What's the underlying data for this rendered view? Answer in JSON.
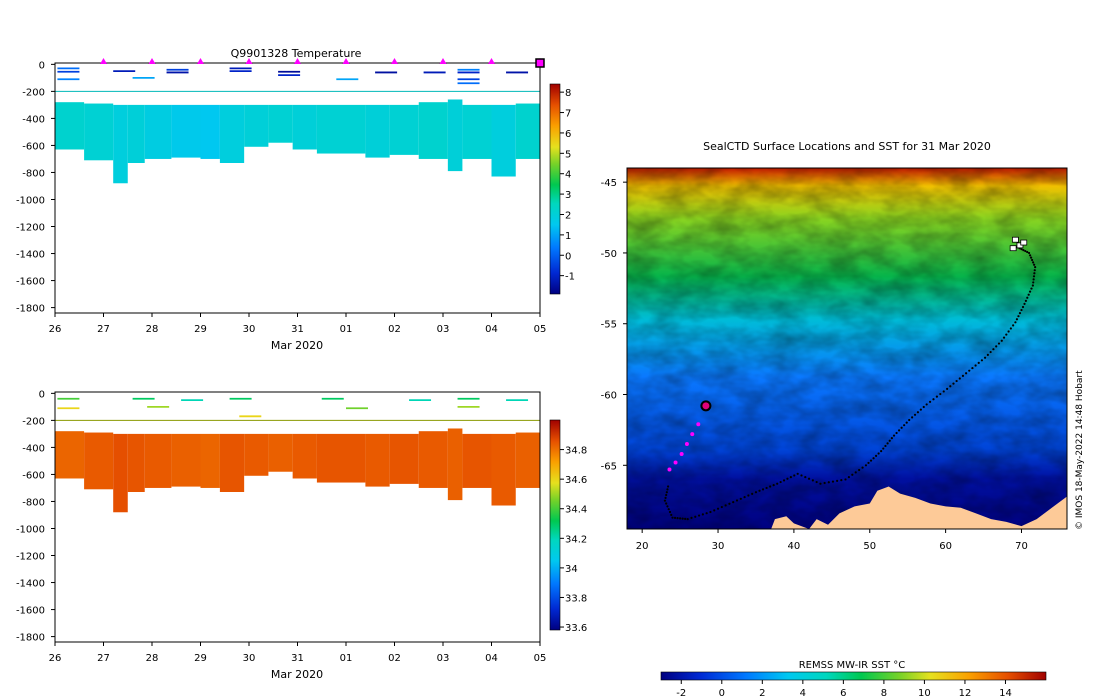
{
  "chart_data": [
    {
      "type": "heatmap",
      "title": "Q9901328  Temperature",
      "xlabel": "Mar 2020",
      "ylabel": "",
      "x_tick_labels": [
        "26",
        "27",
        "28",
        "29",
        "30",
        "31",
        "01",
        "02",
        "03",
        "04",
        "05"
      ],
      "x_range_days": [
        0,
        10
      ],
      "y_tick_values": [
        0,
        -200,
        -400,
        -600,
        -800,
        -1000,
        -1200,
        -1400,
        -1600,
        -1800
      ],
      "ylim": [
        -1840,
        10
      ],
      "colorbar_ticks": [
        8,
        7,
        6,
        5,
        4,
        3,
        2,
        1,
        0,
        -1
      ],
      "colorbar_range": [
        -1.9,
        8.4
      ],
      "marker_color": "#ff00ff",
      "marker_days": [
        1.0,
        2.0,
        3.0,
        4.0,
        5.0,
        6.0,
        7.0,
        8.0,
        9.0,
        10.0
      ],
      "surface_profiles": [
        {
          "day": 0.05,
          "depths": [
            -30,
            -55,
            -110
          ],
          "values": [
            0.2,
            -0.5,
            0.5
          ]
        },
        {
          "day": 1.2,
          "depths": [
            -50
          ],
          "values": [
            -1.2
          ]
        },
        {
          "day": 1.6,
          "depths": [
            -100
          ],
          "values": [
            1.0
          ]
        },
        {
          "day": 2.3,
          "depths": [
            -40,
            -60
          ],
          "values": [
            -0.5,
            -1.4
          ]
        },
        {
          "day": 3.6,
          "depths": [
            -30,
            -50
          ],
          "values": [
            -1.2,
            -1.0
          ]
        },
        {
          "day": 4.6,
          "depths": [
            -55,
            -80
          ],
          "values": [
            -1.6,
            -1.0
          ]
        },
        {
          "day": 5.8,
          "depths": [
            -110
          ],
          "values": [
            1.0
          ]
        },
        {
          "day": 6.6,
          "depths": [
            -60
          ],
          "values": [
            -1.5
          ]
        },
        {
          "day": 7.6,
          "depths": [
            -60
          ],
          "values": [
            -1.2
          ]
        },
        {
          "day": 8.3,
          "depths": [
            -40,
            -60,
            -110,
            -140
          ],
          "values": [
            0.5,
            -1.0,
            -0.5,
            0.2
          ]
        },
        {
          "day": 9.3,
          "depths": [
            -60
          ],
          "values": [
            -1.4
          ]
        }
      ],
      "deep_profiles": [
        {
          "x0": 0.0,
          "x1": 0.6,
          "top": -280,
          "bottom": -630,
          "value": 2.2
        },
        {
          "x0": 0.6,
          "x1": 1.2,
          "top": -290,
          "bottom": -710,
          "value": 2.1
        },
        {
          "x0": 1.2,
          "x1": 1.5,
          "top": -300,
          "bottom": -880,
          "value": 1.9
        },
        {
          "x0": 1.5,
          "x1": 1.85,
          "top": -300,
          "bottom": -730,
          "value": 2.0
        },
        {
          "x0": 1.85,
          "x1": 2.4,
          "top": -300,
          "bottom": -700,
          "value": 1.8
        },
        {
          "x0": 2.4,
          "x1": 3.0,
          "top": -300,
          "bottom": -690,
          "value": 1.6
        },
        {
          "x0": 3.0,
          "x1": 3.4,
          "top": -300,
          "bottom": -700,
          "value": 1.5
        },
        {
          "x0": 3.4,
          "x1": 3.9,
          "top": -300,
          "bottom": -730,
          "value": 1.9
        },
        {
          "x0": 3.9,
          "x1": 4.4,
          "top": -300,
          "bottom": -610,
          "value": 2.0
        },
        {
          "x0": 4.4,
          "x1": 4.9,
          "top": -300,
          "bottom": -580,
          "value": 2.1
        },
        {
          "x0": 4.9,
          "x1": 5.4,
          "top": -300,
          "bottom": -630,
          "value": 2.0
        },
        {
          "x0": 5.4,
          "x1": 6.4,
          "top": -300,
          "bottom": -660,
          "value": 2.1
        },
        {
          "x0": 6.4,
          "x1": 6.9,
          "top": -300,
          "bottom": -690,
          "value": 2.0
        },
        {
          "x0": 6.9,
          "x1": 7.5,
          "top": -300,
          "bottom": -670,
          "value": 2.1
        },
        {
          "x0": 7.5,
          "x1": 8.1,
          "top": -280,
          "bottom": -700,
          "value": 2.2
        },
        {
          "x0": 8.1,
          "x1": 8.4,
          "top": -260,
          "bottom": -790,
          "value": 2.0
        },
        {
          "x0": 8.4,
          "x1": 9.0,
          "top": -300,
          "bottom": -700,
          "value": 2.1
        },
        {
          "x0": 9.0,
          "x1": 9.5,
          "top": -300,
          "bottom": -830,
          "value": 1.9
        },
        {
          "x0": 9.5,
          "x1": 10.0,
          "top": -290,
          "bottom": -700,
          "value": 2.2
        }
      ],
      "reference_line_depth": -200
    },
    {
      "type": "heatmap",
      "title": "",
      "xlabel": "Mar 2020",
      "ylabel": "",
      "x_tick_labels": [
        "26",
        "27",
        "28",
        "29",
        "30",
        "31",
        "01",
        "02",
        "03",
        "04",
        "05"
      ],
      "x_range_days": [
        0,
        10
      ],
      "y_tick_values": [
        0,
        -200,
        -400,
        -600,
        -800,
        -1000,
        -1200,
        -1400,
        -1600,
        -1800
      ],
      "ylim": [
        -1840,
        10
      ],
      "colorbar_ticks": [
        34.8,
        34.6,
        34.4,
        34.2,
        34,
        33.8,
        33.6
      ],
      "colorbar_range": [
        33.58,
        35.0
      ],
      "surface_profiles": [
        {
          "day": 0.05,
          "depths": [
            -40,
            -110
          ],
          "values": [
            34.4,
            34.6
          ]
        },
        {
          "day": 1.6,
          "depths": [
            -40
          ],
          "values": [
            34.3
          ]
        },
        {
          "day": 1.9,
          "depths": [
            -100
          ],
          "values": [
            34.5
          ]
        },
        {
          "day": 2.6,
          "depths": [
            -50
          ],
          "values": [
            34.2
          ]
        },
        {
          "day": 3.6,
          "depths": [
            -40
          ],
          "values": [
            34.3
          ]
        },
        {
          "day": 3.8,
          "depths": [
            -170
          ],
          "values": [
            34.6
          ]
        },
        {
          "day": 5.5,
          "depths": [
            -40
          ],
          "values": [
            34.3
          ]
        },
        {
          "day": 6.0,
          "depths": [
            -110
          ],
          "values": [
            34.45
          ]
        },
        {
          "day": 7.3,
          "depths": [
            -50
          ],
          "values": [
            34.2
          ]
        },
        {
          "day": 8.3,
          "depths": [
            -40,
            -100
          ],
          "values": [
            34.3,
            34.5
          ]
        },
        {
          "day": 9.3,
          "depths": [
            -50
          ],
          "values": [
            34.2
          ]
        }
      ],
      "deep_profiles": [
        {
          "x0": 0.0,
          "x1": 0.6,
          "top": -280,
          "bottom": -630,
          "value": 34.82
        },
        {
          "x0": 0.6,
          "x1": 1.2,
          "top": -290,
          "bottom": -710,
          "value": 34.84
        },
        {
          "x0": 1.2,
          "x1": 1.5,
          "top": -300,
          "bottom": -880,
          "value": 34.86
        },
        {
          "x0": 1.5,
          "x1": 1.85,
          "top": -300,
          "bottom": -730,
          "value": 34.85
        },
        {
          "x0": 1.85,
          "x1": 2.4,
          "top": -300,
          "bottom": -700,
          "value": 34.84
        },
        {
          "x0": 2.4,
          "x1": 3.0,
          "top": -300,
          "bottom": -690,
          "value": 34.83
        },
        {
          "x0": 3.0,
          "x1": 3.4,
          "top": -300,
          "bottom": -700,
          "value": 34.82
        },
        {
          "x0": 3.4,
          "x1": 3.9,
          "top": -300,
          "bottom": -730,
          "value": 34.85
        },
        {
          "x0": 3.9,
          "x1": 4.4,
          "top": -300,
          "bottom": -610,
          "value": 34.84
        },
        {
          "x0": 4.4,
          "x1": 4.9,
          "top": -300,
          "bottom": -580,
          "value": 34.83
        },
        {
          "x0": 4.9,
          "x1": 5.4,
          "top": -300,
          "bottom": -630,
          "value": 34.84
        },
        {
          "x0": 5.4,
          "x1": 6.4,
          "top": -300,
          "bottom": -660,
          "value": 34.85
        },
        {
          "x0": 6.4,
          "x1": 6.9,
          "top": -300,
          "bottom": -690,
          "value": 34.84
        },
        {
          "x0": 6.9,
          "x1": 7.5,
          "top": -300,
          "bottom": -670,
          "value": 34.85
        },
        {
          "x0": 7.5,
          "x1": 8.1,
          "top": -280,
          "bottom": -700,
          "value": 34.84
        },
        {
          "x0": 8.1,
          "x1": 8.4,
          "top": -260,
          "bottom": -790,
          "value": 34.83
        },
        {
          "x0": 8.4,
          "x1": 9.0,
          "top": -300,
          "bottom": -700,
          "value": 34.85
        },
        {
          "x0": 9.0,
          "x1": 9.5,
          "top": -300,
          "bottom": -830,
          "value": 34.84
        },
        {
          "x0": 9.5,
          "x1": 10.0,
          "top": -290,
          "bottom": -700,
          "value": 34.83
        }
      ],
      "reference_line_depth": -200
    },
    {
      "type": "heatmap",
      "title": "SealCTD Surface Locations and SST for 31 Mar 2020",
      "xlabel": "",
      "ylabel": "",
      "xlim": [
        18,
        76
      ],
      "ylim": [
        -69.5,
        -44
      ],
      "x_ticks": [
        20,
        30,
        40,
        50,
        60,
        70
      ],
      "y_ticks": [
        -45,
        -50,
        -55,
        -60,
        -65
      ],
      "colorbar_label": "REMSS MW-IR SST °C",
      "colorbar_ticks": [
        -2,
        0,
        2,
        4,
        6,
        8,
        10,
        12,
        14
      ],
      "colorbar_range": [
        -3,
        16
      ],
      "side_text": "© IMOS 18-May-2022 14:48 Hobart",
      "land_color": "#fdca98",
      "track_points": [
        [
          69.5,
          -49.6
        ],
        [
          71.0,
          -50.0
        ],
        [
          71.8,
          -51.0
        ],
        [
          71.5,
          -52.3
        ],
        [
          70.4,
          -53.6
        ],
        [
          69.2,
          -54.9
        ],
        [
          67.4,
          -56.2
        ],
        [
          65.2,
          -57.4
        ],
        [
          62.7,
          -58.5
        ],
        [
          60.2,
          -59.6
        ],
        [
          57.5,
          -60.7
        ],
        [
          55.2,
          -61.8
        ],
        [
          53.2,
          -62.9
        ],
        [
          51.5,
          -64.0
        ],
        [
          49.5,
          -65.0
        ],
        [
          46.8,
          -66.0
        ],
        [
          43.5,
          -66.3
        ],
        [
          40.5,
          -65.6
        ],
        [
          37.8,
          -66.3
        ],
        [
          35.0,
          -66.9
        ],
        [
          32.0,
          -67.6
        ],
        [
          29.0,
          -68.3
        ],
        [
          26.0,
          -68.8
        ],
        [
          24.0,
          -68.7
        ],
        [
          23.0,
          -67.5
        ],
        [
          23.5,
          -66.3
        ]
      ],
      "recent_points": [
        [
          23.6,
          -65.3
        ],
        [
          24.4,
          -64.8
        ],
        [
          25.2,
          -64.2
        ],
        [
          25.9,
          -63.5
        ],
        [
          26.6,
          -62.8
        ],
        [
          27.4,
          -62.1
        ]
      ],
      "current_position": [
        28.4,
        -60.8
      ],
      "island_points": [
        [
          69.2,
          -49.1
        ],
        [
          69.8,
          -49.5
        ],
        [
          70.3,
          -49.3
        ],
        [
          68.9,
          -49.7
        ]
      ]
    }
  ]
}
